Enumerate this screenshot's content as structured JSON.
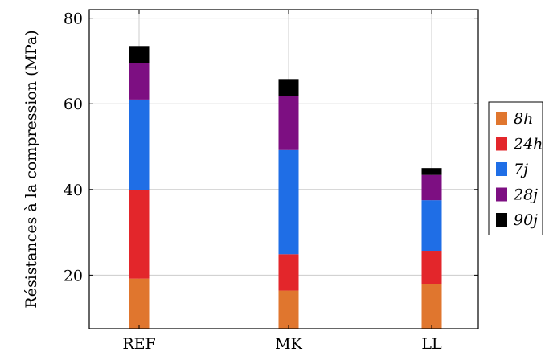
{
  "chart_data": {
    "type": "bar",
    "stacked": true,
    "categories": [
      "REF",
      "MK",
      "LL"
    ],
    "series": [
      {
        "name": "8h",
        "color": "#e0762e",
        "values": [
          19.2,
          16.4,
          17.9
        ]
      },
      {
        "name": "24h",
        "color": "#e3262b",
        "values": [
          20.7,
          8.5,
          7.8
        ]
      },
      {
        "name": "7j",
        "color": "#1f6ee6",
        "values": [
          21.1,
          24.3,
          11.8
        ]
      },
      {
        "name": "28j",
        "color": "#7d0f82",
        "values": [
          8.6,
          12.7,
          5.9
        ]
      },
      {
        "name": "90j",
        "color": "#000000",
        "values": [
          3.9,
          3.9,
          1.6
        ]
      }
    ],
    "ylabel": "Résistances à la compression (MPa)",
    "xlabel": "",
    "ylim": [
      7.5,
      82
    ],
    "yticks": [
      20,
      40,
      60,
      80
    ],
    "grid": true,
    "legend_position": "right"
  }
}
